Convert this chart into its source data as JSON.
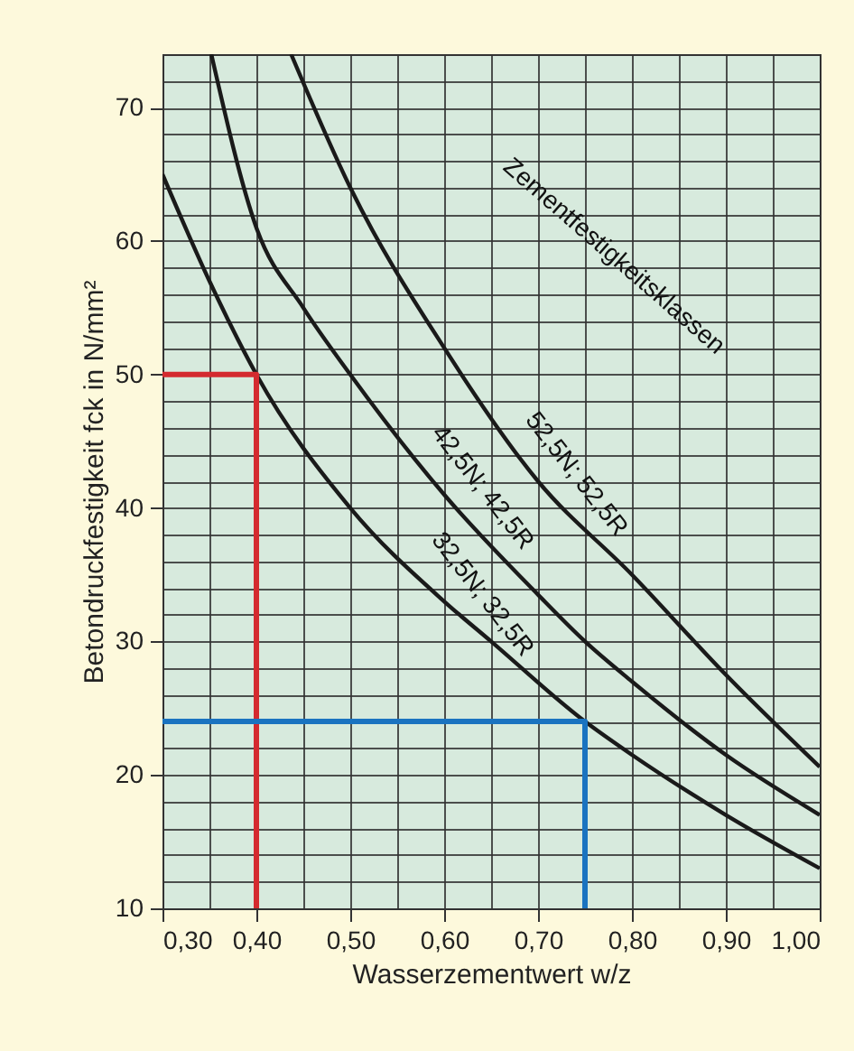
{
  "chart_data": {
    "type": "line",
    "xlabel": "Wasserzementwert w/z",
    "ylabel": "Betondruckfestigkeit fck in N/mm²",
    "annotations": [
      "Zementfestigkeitsklassen"
    ],
    "xlim": [
      0.3,
      1.0
    ],
    "ylim": [
      10,
      74
    ],
    "xticks": [
      {
        "value": 0.3,
        "label": "0,30"
      },
      {
        "value": 0.35,
        "label": null
      },
      {
        "value": 0.4,
        "label": "0,40"
      },
      {
        "value": 0.45,
        "label": null
      },
      {
        "value": 0.5,
        "label": "0,50"
      },
      {
        "value": 0.55,
        "label": null
      },
      {
        "value": 0.6,
        "label": "0,60"
      },
      {
        "value": 0.65,
        "label": null
      },
      {
        "value": 0.7,
        "label": "0,70"
      },
      {
        "value": 0.75,
        "label": null
      },
      {
        "value": 0.8,
        "label": "0,80"
      },
      {
        "value": 0.85,
        "label": null
      },
      {
        "value": 0.9,
        "label": "0,90"
      },
      {
        "value": 0.95,
        "label": null
      },
      {
        "value": 1.0,
        "label": "1,00"
      }
    ],
    "yticks": [
      10,
      {
        "value": 12,
        "label": null
      },
      {
        "value": 14,
        "label": null
      },
      {
        "value": 16,
        "label": null
      },
      {
        "value": 18,
        "label": null
      },
      20,
      {
        "value": 22,
        "label": null
      },
      {
        "value": 24,
        "label": null
      },
      {
        "value": 26,
        "label": null
      },
      {
        "value": 28,
        "label": null
      },
      30,
      {
        "value": 32,
        "label": null
      },
      {
        "value": 34,
        "label": null
      },
      {
        "value": 36,
        "label": null
      },
      {
        "value": 38,
        "label": null
      },
      40,
      {
        "value": 42,
        "label": null
      },
      {
        "value": 44,
        "label": null
      },
      {
        "value": 46,
        "label": null
      },
      {
        "value": 48,
        "label": null
      },
      50,
      {
        "value": 52,
        "label": null
      },
      {
        "value": 54,
        "label": null
      },
      {
        "value": 56,
        "label": null
      },
      {
        "value": 58,
        "label": null
      },
      60,
      {
        "value": 62,
        "label": null
      },
      {
        "value": 64,
        "label": null
      },
      {
        "value": 66,
        "label": null
      },
      {
        "value": 68,
        "label": null
      },
      70,
      {
        "value": 72,
        "label": null
      }
    ],
    "grid": true,
    "legend": false,
    "marker": "none",
    "line_style": "solid",
    "series": [
      {
        "name": "32,5N; 32,5R",
        "color": "#1a1a1a",
        "x": [
          0.3,
          0.35,
          0.4,
          0.5,
          0.6,
          0.65,
          0.75,
          0.8,
          0.9,
          1.0
        ],
        "values": [
          65,
          57,
          50,
          40,
          33,
          30,
          24,
          21.5,
          17,
          13
        ]
      },
      {
        "name": "42,5N; 42,5R",
        "color": "#1a1a1a",
        "x": [
          0.352,
          0.4,
          0.45,
          0.5,
          0.6,
          0.7,
          0.75,
          0.8,
          0.9,
          1.0
        ],
        "values": [
          74,
          61,
          55,
          50,
          41,
          33.5,
          30,
          27,
          21.5,
          17
        ]
      },
      {
        "name": "52,5N; 52,5R",
        "color": "#1a1a1a",
        "x": [
          0.437,
          0.5,
          0.6,
          0.7,
          0.8,
          0.9,
          1.0
        ],
        "values": [
          74,
          64,
          52,
          42,
          35,
          27.5,
          20.6
        ]
      },
      {
        "color": "#d42a2f",
        "x": [
          0.3,
          0.4,
          0.4
        ],
        "values": [
          50,
          50,
          10
        ]
      },
      {
        "color": "#1a73c0",
        "x": [
          0.3,
          0.75,
          0.75
        ],
        "values": [
          24,
          24,
          10
        ]
      }
    ]
  }
}
